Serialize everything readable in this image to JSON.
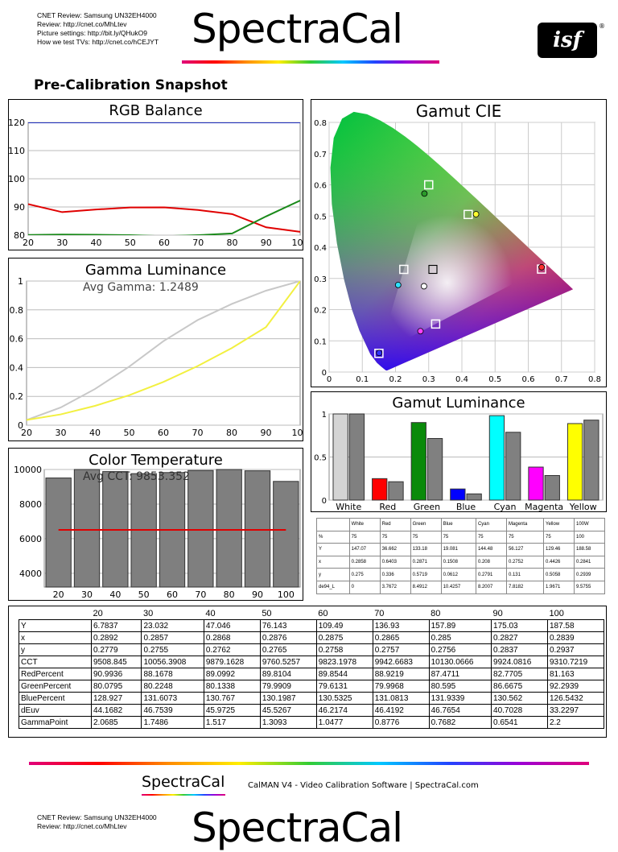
{
  "header": {
    "lines": [
      "CNET Review: Samsung UN32EH4000",
      "Review: http://cnet.co/MhLtev",
      "Picture settings: http://bit.ly/QHukO9",
      "How we test TVs: http://cnet.co/hCEJYT"
    ],
    "logo": "SpectraCal",
    "isf": "isf",
    "reg": "®"
  },
  "snapshot_title": "Pre-Calibration Snapshot",
  "panels": {
    "rgb": "RGB Balance",
    "gamma": "Gamma Luminance",
    "gamma_avg": "Avg Gamma: 1.2489",
    "cct": "Color Temperature",
    "cct_avg": "Avg CCT: 9853.352",
    "cie": "Gamut CIE",
    "gamut_lum": "Gamut Luminance"
  },
  "chart_data": [
    {
      "type": "line",
      "title": "RGB Balance",
      "x": [
        20,
        30,
        40,
        50,
        60,
        70,
        80,
        90,
        100
      ],
      "xlim": [
        20,
        100
      ],
      "ylim": [
        80,
        120
      ],
      "yticks": [
        80,
        90,
        100,
        110,
        120
      ],
      "series": [
        {
          "color": "#e00000",
          "values": [
            90.9936,
            88.1678,
            89.0992,
            89.8104,
            89.8544,
            88.9219,
            87.4711,
            82.7705,
            81.163
          ]
        },
        {
          "color": "#1a8a1a",
          "values": [
            80.0795,
            80.2248,
            80.1338,
            79.9909,
            79.6131,
            79.9968,
            80.595,
            86.6675,
            92.2939
          ]
        },
        {
          "color": "#2030c0",
          "values": [
            128.927,
            131.6073,
            130.767,
            130.1987,
            130.5325,
            131.0813,
            131.9339,
            130.562,
            126.5432
          ]
        }
      ]
    },
    {
      "type": "line",
      "title": "Gamma Luminance",
      "x": [
        20,
        30,
        40,
        50,
        60,
        70,
        80,
        90,
        100
      ],
      "xlim": [
        20,
        100
      ],
      "ylim": [
        0,
        1
      ],
      "yticks": [
        0,
        0.2,
        0.4,
        0.6,
        0.8,
        1
      ],
      "series": [
        {
          "color": "#c8c8c8",
          "values": [
            0.036,
            0.123,
            0.251,
            0.406,
            0.583,
            0.729,
            0.841,
            0.933,
            1.0
          ]
        },
        {
          "color": "#f2f040",
          "values": [
            0.036,
            0.075,
            0.134,
            0.208,
            0.3,
            0.41,
            0.535,
            0.68,
            1.0
          ]
        }
      ]
    },
    {
      "type": "bar",
      "title": "Color Temperature",
      "categories": [
        "20",
        "30",
        "40",
        "50",
        "60",
        "70",
        "80",
        "90",
        "100"
      ],
      "values": [
        9508.845,
        10056.3908,
        9879.1628,
        9760.5257,
        9823.1978,
        9942.6683,
        10130.0666,
        9924.0816,
        9310.7219
      ],
      "target": 6504,
      "ylim": [
        3200,
        10000
      ],
      "yticks": [
        4000,
        6000,
        8000,
        10000
      ]
    },
    {
      "type": "scatter",
      "title": "Gamut CIE",
      "xlim": [
        0,
        0.8
      ],
      "ylim": [
        0,
        0.8
      ],
      "xticks": [
        0,
        0.1,
        0.2,
        0.3,
        0.4,
        0.5,
        0.6,
        0.7,
        0.8
      ],
      "yticks": [
        0,
        0.1,
        0.2,
        0.3,
        0.4,
        0.5,
        0.6,
        0.7,
        0.8
      ],
      "targets": [
        [
          0.64,
          0.33
        ],
        [
          0.3,
          0.6
        ],
        [
          0.15,
          0.06
        ],
        [
          0.3127,
          0.329
        ],
        [
          0.225,
          0.329
        ],
        [
          0.321,
          0.154
        ],
        [
          0.419,
          0.505
        ]
      ],
      "measured": [
        {
          "x": 0.6403,
          "y": 0.336,
          "color": "#ff3030"
        },
        {
          "x": 0.2871,
          "y": 0.5719,
          "color": "#2a9a2a"
        },
        {
          "x": 0.1508,
          "y": 0.0612,
          "color": "#3030ff"
        },
        {
          "x": 0.2858,
          "y": 0.275,
          "color": "#ffffff"
        },
        {
          "x": 0.208,
          "y": 0.2791,
          "color": "#30e0ff"
        },
        {
          "x": 0.2752,
          "y": 0.131,
          "color": "#ff40ff"
        },
        {
          "x": 0.4426,
          "y": 0.5058,
          "color": "#ffff30"
        }
      ]
    },
    {
      "type": "bar",
      "title": "Gamut Luminance",
      "categories": [
        "White",
        "Red",
        "Green",
        "Blue",
        "Cyan",
        "Magenta",
        "Yellow"
      ],
      "colors": [
        "#d4d4d4",
        "#ff0000",
        "#0a8a0a",
        "#0000ff",
        "#00ffff",
        "#ff00ff",
        "#ffff00"
      ],
      "target": [
        1.0,
        0.213,
        0.715,
        0.072,
        0.787,
        0.285,
        0.928
      ],
      "values": [
        1.0,
        0.249,
        0.9,
        0.129,
        0.98,
        0.383,
        0.888
      ],
      "ylim": [
        0,
        1
      ],
      "yticks": [
        0,
        0.5,
        1
      ]
    }
  ],
  "small_table": {
    "header": [
      "",
      "White",
      "Red",
      "Green",
      "Blue",
      "Cyan",
      "Magenta",
      "Yellow",
      "100W"
    ],
    "rows": [
      [
        "%",
        "75",
        "75",
        "75",
        "75",
        "75",
        "75",
        "75",
        "100"
      ],
      [
        "Y",
        "147.07",
        "36.662",
        "133.18",
        "19.081",
        "144.48",
        "56.127",
        "129.46",
        "188.58"
      ],
      [
        "x",
        "0.2858",
        "0.6403",
        "0.2871",
        "0.1508",
        "0.208",
        "0.2752",
        "0.4426",
        "0.2841"
      ],
      [
        "y",
        "0.275",
        "0.336",
        "0.5719",
        "0.0612",
        "0.2791",
        "0.131",
        "0.5058",
        "0.2939"
      ],
      [
        "de94_L",
        "0",
        "3.7672",
        "8.4912",
        "10.4257",
        "8.2007",
        "7.8182",
        "1.9671",
        "9.5755"
      ]
    ]
  },
  "big_table": {
    "header": [
      "",
      "20",
      "30",
      "40",
      "50",
      "60",
      "70",
      "80",
      "90",
      "100"
    ],
    "rows": [
      [
        "Y",
        "6.7837",
        "23.032",
        "47.046",
        "76.143",
        "109.49",
        "136.93",
        "157.89",
        "175.03",
        "187.58"
      ],
      [
        "x",
        "0.2892",
        "0.2857",
        "0.2868",
        "0.2876",
        "0.2875",
        "0.2865",
        "0.285",
        "0.2827",
        "0.2839"
      ],
      [
        "y",
        "0.2779",
        "0.2755",
        "0.2762",
        "0.2765",
        "0.2758",
        "0.2757",
        "0.2756",
        "0.2837",
        "0.2937"
      ],
      [
        "CCT",
        "9508.845",
        "10056.3908",
        "9879.1628",
        "9760.5257",
        "9823.1978",
        "9942.6683",
        "10130.0666",
        "9924.0816",
        "9310.7219"
      ],
      [
        "RedPercent",
        "90.9936",
        "88.1678",
        "89.0992",
        "89.8104",
        "89.8544",
        "88.9219",
        "87.4711",
        "82.7705",
        "81.163"
      ],
      [
        "GreenPercent",
        "80.0795",
        "80.2248",
        "80.1338",
        "79.9909",
        "79.6131",
        "79.9968",
        "80.595",
        "86.6675",
        "92.2939"
      ],
      [
        "BluePercent",
        "128.927",
        "131.6073",
        "130.767",
        "130.1987",
        "130.5325",
        "131.0813",
        "131.9339",
        "130.562",
        "126.5432"
      ],
      [
        "dEuv",
        "44.1682",
        "46.7539",
        "45.9725",
        "45.5267",
        "46.2174",
        "46.4192",
        "46.7654",
        "40.7028",
        "33.2297"
      ],
      [
        "GammaPoint",
        "2.0685",
        "1.7486",
        "1.517",
        "1.3093",
        "1.0477",
        "0.8776",
        "0.7682",
        "0.6541",
        "2.2"
      ]
    ]
  },
  "footer": {
    "logo": "SpectraCal",
    "text": "CalMAN V4 - Video Calibration Software | SpectraCal.com",
    "lines": [
      "CNET Review: Samsung UN32EH4000",
      "Review: http://cnet.co/MhLtev"
    ],
    "logo2": "SpectraCal"
  }
}
